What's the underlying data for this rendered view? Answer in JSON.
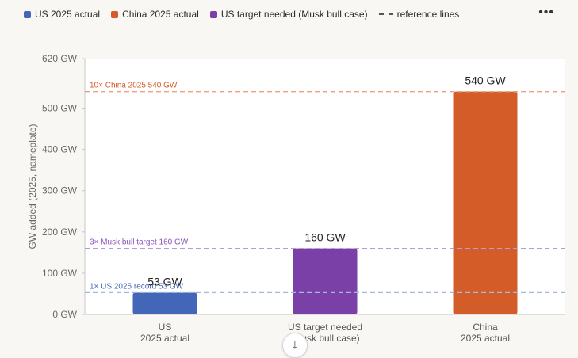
{
  "legend": {
    "items": [
      {
        "label": "US 2025 actual",
        "color": "#4466b8"
      },
      {
        "label": "China 2025 actual",
        "color": "#d45c28"
      },
      {
        "label": "US target needed (Musk bull case)",
        "color": "#7b3fa8"
      }
    ],
    "reference_label": "reference lines"
  },
  "menu": {
    "more_icon": "more-horizontal-icon",
    "more_glyph": "•••"
  },
  "scroll_button": {
    "icon": "arrow-down-icon",
    "glyph": "↓"
  },
  "chart_data": {
    "type": "bar",
    "ylabel": "GW added (2025, nameplate)",
    "ylim": [
      0,
      620
    ],
    "yticks": [
      0,
      100,
      200,
      300,
      400,
      500,
      620
    ],
    "ytick_labels": [
      "0 GW",
      "100 GW",
      "200 GW",
      "300 GW",
      "400 GW",
      "500 GW",
      "620 GW"
    ],
    "grid": false,
    "categories": [
      [
        "US",
        "2025 actual"
      ],
      [
        "US target needed",
        "(Musk bull case)"
      ],
      [
        "China",
        "2025 actual"
      ]
    ],
    "values": [
      53,
      160,
      540
    ],
    "data_labels": [
      "53 GW",
      "160 GW",
      "540 GW"
    ],
    "colors": [
      "#4466b8",
      "#7b3fa8",
      "#d45c28"
    ],
    "reference_lines": [
      {
        "value": 540,
        "label": "10×  China 2025  540 GW",
        "color": "#e8a07e"
      },
      {
        "value": 160,
        "label": "3×  Musk bull target  160 GW",
        "color": "#b89bd4"
      },
      {
        "value": 53,
        "label": "1×  US 2025 record  53 GW",
        "color": "#a6b7dc"
      }
    ],
    "reference_label_colors": [
      "#d45c28",
      "#8a55b8",
      "#4466b8"
    ]
  }
}
